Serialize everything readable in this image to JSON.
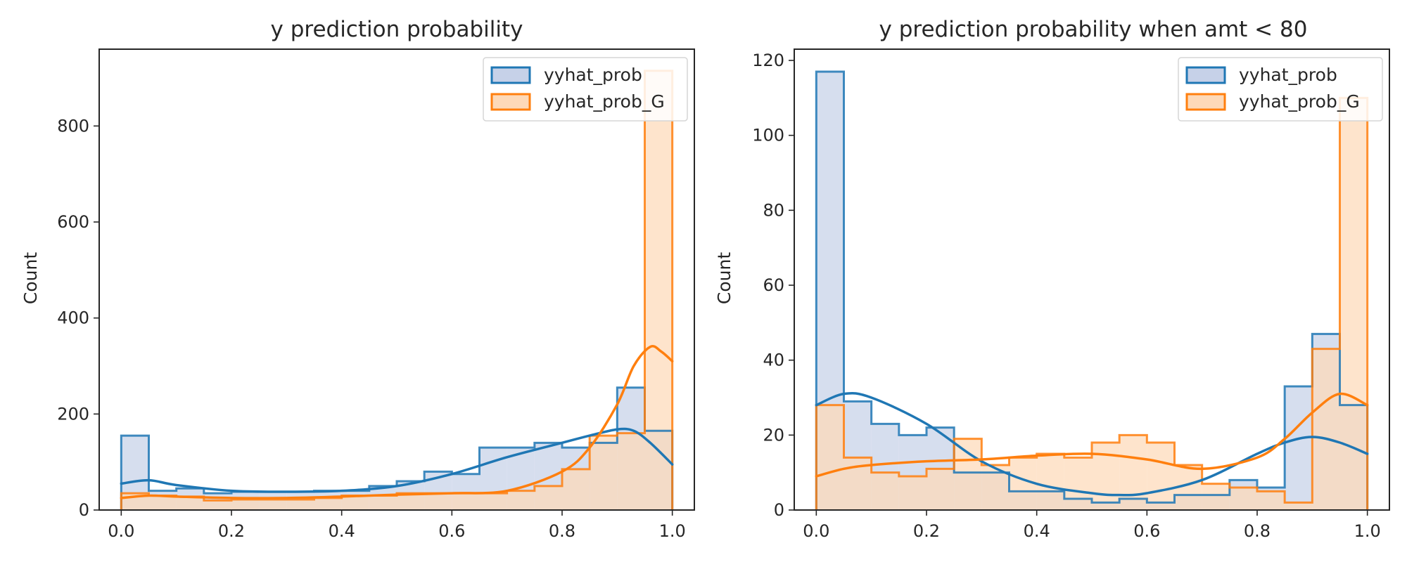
{
  "chart_data": [
    {
      "type": "histogram",
      "title": "y prediction probability",
      "xlabel": "",
      "ylabel": "Count",
      "xlim": [
        -0.04,
        1.04
      ],
      "ylim": [
        0,
        960
      ],
      "x_ticks": [
        "0.0",
        "0.2",
        "0.4",
        "0.6",
        "0.8",
        "1.0"
      ],
      "y_ticks": [
        "0",
        "200",
        "400",
        "600",
        "800"
      ],
      "bin_edges": [
        0.0,
        0.05,
        0.1,
        0.15,
        0.2,
        0.25,
        0.3,
        0.35,
        0.4,
        0.45,
        0.5,
        0.55,
        0.6,
        0.65,
        0.7,
        0.75,
        0.8,
        0.85,
        0.9,
        0.95,
        1.0
      ],
      "grid": false,
      "legend_position": "top-right",
      "series": [
        {
          "name": "yyhat_prob",
          "color": "#1f77b4",
          "fill": "#c6d1e8",
          "values": [
            155,
            40,
            45,
            35,
            38,
            38,
            38,
            40,
            40,
            50,
            60,
            80,
            75,
            130,
            130,
            140,
            130,
            140,
            255,
            165
          ],
          "kde_x": [
            0.0,
            0.05,
            0.1,
            0.2,
            0.3,
            0.4,
            0.5,
            0.6,
            0.7,
            0.8,
            0.85,
            0.9,
            0.93,
            0.96,
            1.0
          ],
          "kde_y": [
            55,
            62,
            52,
            40,
            38,
            40,
            50,
            75,
            110,
            140,
            155,
            168,
            165,
            140,
            95
          ]
        },
        {
          "name": "yyhat_prob_G",
          "color": "#ff7f0e",
          "fill": "#fdd9b8",
          "values": [
            35,
            30,
            28,
            20,
            22,
            22,
            22,
            25,
            30,
            30,
            35,
            35,
            35,
            35,
            40,
            50,
            85,
            155,
            160,
            915
          ],
          "kde_x": [
            0.0,
            0.05,
            0.1,
            0.2,
            0.3,
            0.4,
            0.5,
            0.6,
            0.7,
            0.8,
            0.85,
            0.9,
            0.93,
            0.96,
            0.98,
            1.0
          ],
          "kde_y": [
            25,
            30,
            28,
            25,
            25,
            28,
            32,
            35,
            40,
            80,
            130,
            220,
            300,
            340,
            330,
            310
          ]
        }
      ]
    },
    {
      "type": "histogram",
      "title": "y prediction probability when amt < 80",
      "xlabel": "",
      "ylabel": "Count",
      "xlim": [
        -0.04,
        1.04
      ],
      "ylim": [
        0,
        123
      ],
      "x_ticks": [
        "0.0",
        "0.2",
        "0.4",
        "0.6",
        "0.8",
        "1.0"
      ],
      "y_ticks": [
        "0",
        "20",
        "40",
        "60",
        "80",
        "100",
        "120"
      ],
      "bin_edges": [
        0.0,
        0.05,
        0.1,
        0.15,
        0.2,
        0.25,
        0.3,
        0.35,
        0.4,
        0.45,
        0.5,
        0.55,
        0.6,
        0.65,
        0.7,
        0.75,
        0.8,
        0.85,
        0.9,
        0.95,
        1.0
      ],
      "grid": false,
      "legend_position": "top-right",
      "series": [
        {
          "name": "yyhat_prob",
          "color": "#1f77b4",
          "fill": "#c6d1e8",
          "values": [
            117,
            29,
            23,
            20,
            22,
            10,
            10,
            5,
            5,
            3,
            2,
            3,
            2,
            4,
            4,
            8,
            6,
            33,
            47,
            28
          ],
          "kde_x": [
            0.0,
            0.05,
            0.1,
            0.2,
            0.3,
            0.4,
            0.5,
            0.55,
            0.6,
            0.7,
            0.8,
            0.85,
            0.9,
            0.95,
            1.0
          ],
          "kde_y": [
            28,
            31,
            30,
            23,
            13,
            7,
            4.5,
            4,
            4.5,
            8,
            15,
            18,
            19.5,
            18,
            15
          ]
        },
        {
          "name": "yyhat_prob_G",
          "color": "#ff7f0e",
          "fill": "#fdd9b8",
          "values": [
            28,
            14,
            10,
            9,
            11,
            19,
            12,
            14,
            15,
            14,
            18,
            20,
            18,
            12,
            7,
            6,
            5,
            2,
            43,
            110
          ],
          "kde_x": [
            0.0,
            0.05,
            0.1,
            0.2,
            0.3,
            0.4,
            0.5,
            0.6,
            0.7,
            0.8,
            0.85,
            0.9,
            0.95,
            1.0
          ],
          "kde_y": [
            9,
            11,
            12,
            13,
            13.5,
            14.5,
            15,
            13.5,
            11,
            14,
            19,
            26,
            31,
            28
          ]
        }
      ]
    }
  ]
}
